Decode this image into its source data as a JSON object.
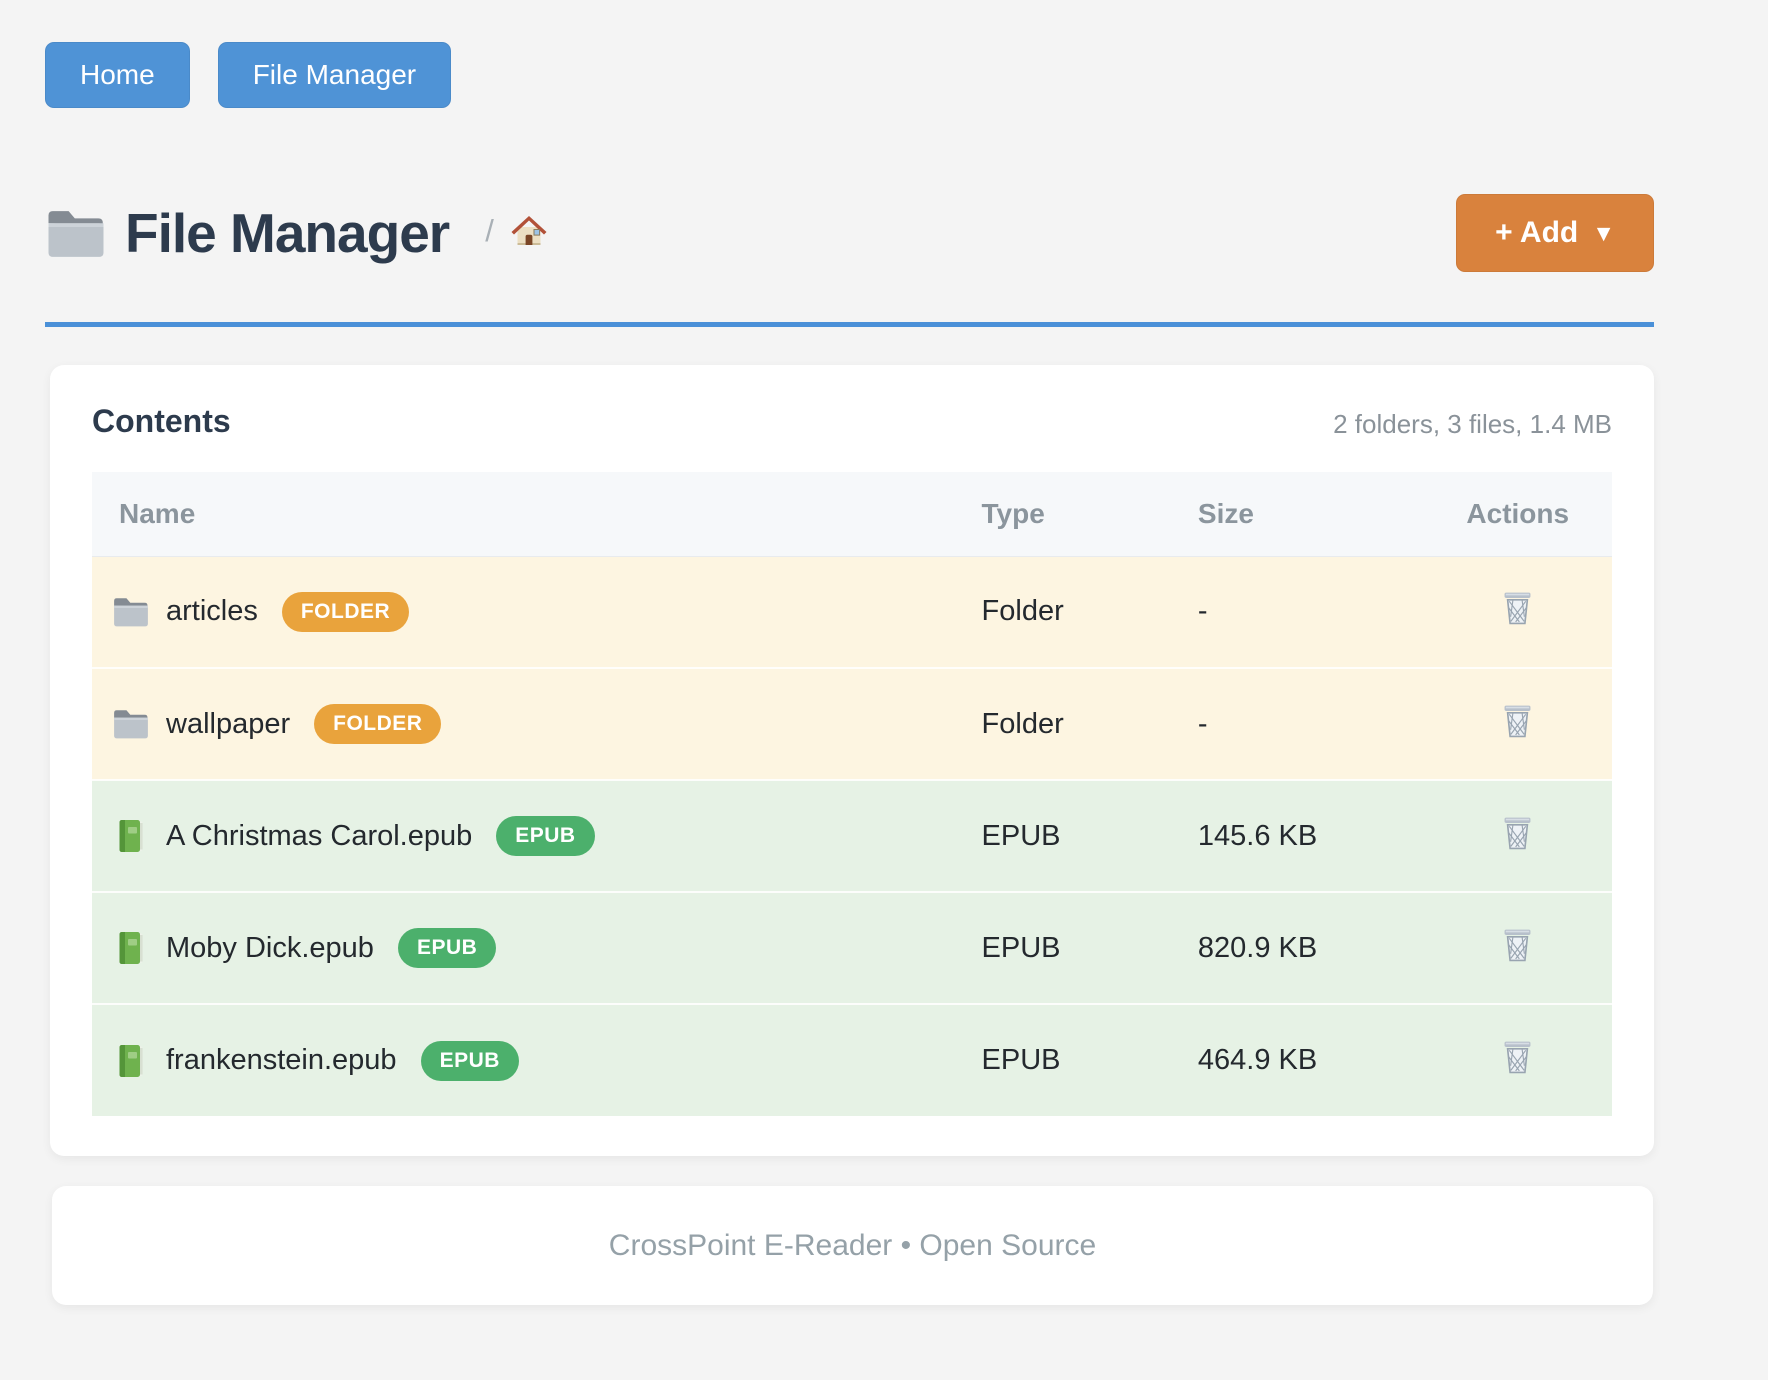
{
  "colors": {
    "page_bg": "#f4f4f4",
    "nav_blue": "#4f93d6",
    "accent_blue": "#4a90d8",
    "add_orange": "#d9823d",
    "badge_orange": "#e9a33c",
    "badge_green": "#4cb06c",
    "row_folder_bg": "#fdf5e1",
    "row_epub_bg": "#e6f2e5",
    "title_dark": "#2d3b4d"
  },
  "nav": {
    "home_label": "Home",
    "file_manager_label": "File Manager"
  },
  "header": {
    "icon": "folder-icon",
    "title": "File Manager",
    "breadcrumb_separator": "/",
    "breadcrumb_home": "home-icon",
    "add_button": {
      "label": "+ Add",
      "caret": "▼"
    }
  },
  "contents": {
    "title": "Contents",
    "summary": "2 folders, 3 files, 1.4 MB",
    "table": {
      "headers": [
        "Name",
        "Type",
        "Size",
        "Actions"
      ],
      "rows": [
        {
          "kind": "folder",
          "icon": "folder-icon",
          "name": "articles",
          "badge": "FOLDER",
          "type": "Folder",
          "size": "-",
          "action": "trash-icon"
        },
        {
          "kind": "folder",
          "icon": "folder-icon",
          "name": "wallpaper",
          "badge": "FOLDER",
          "type": "Folder",
          "size": "-",
          "action": "trash-icon"
        },
        {
          "kind": "epub",
          "icon": "book-icon",
          "name": "A Christmas Carol.epub",
          "badge": "EPUB",
          "type": "EPUB",
          "size": "145.6 KB",
          "action": "trash-icon"
        },
        {
          "kind": "epub",
          "icon": "book-icon",
          "name": "Moby Dick.epub",
          "badge": "EPUB",
          "type": "EPUB",
          "size": "820.9 KB",
          "action": "trash-icon"
        },
        {
          "kind": "epub",
          "icon": "book-icon",
          "name": "frankenstein.epub",
          "badge": "EPUB",
          "type": "EPUB",
          "size": "464.9 KB",
          "action": "trash-icon"
        }
      ]
    }
  },
  "footer": {
    "text": "CrossPoint E-Reader • Open Source"
  }
}
